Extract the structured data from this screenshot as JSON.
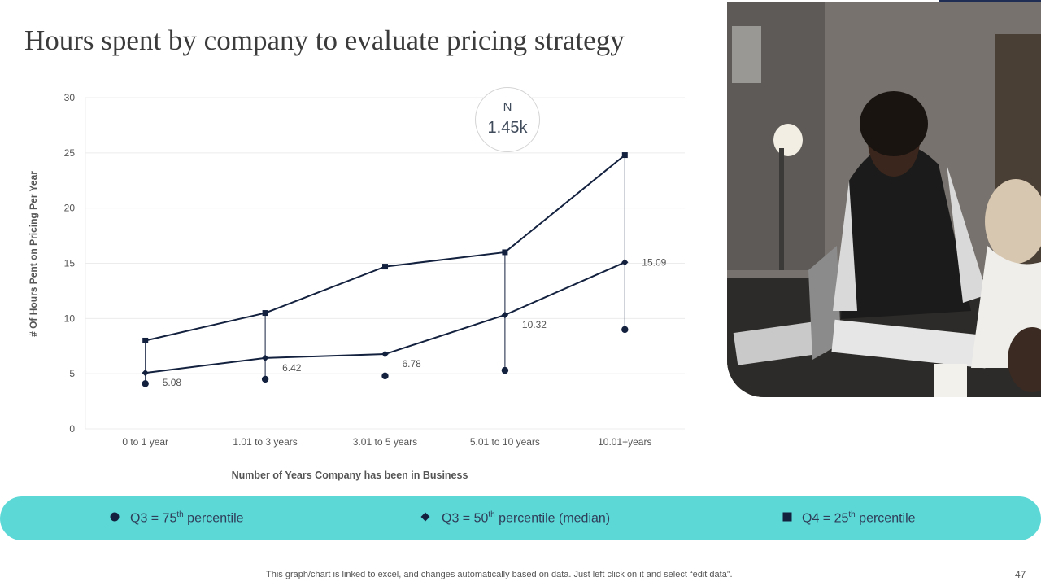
{
  "slide": {
    "title": "Hours spent by company to evaluate pricing strategy",
    "footer_note": "This graph/chart is linked to excel,  and changes automatically based on data. Just left click on it and select “edit data”.",
    "page_number": "47"
  },
  "badge": {
    "label": "N",
    "value": "1.45k"
  },
  "legend": {
    "items": [
      {
        "pre": "Q3 = 75",
        "sup": "th",
        "post": " percentile",
        "marker": "circle"
      },
      {
        "pre": "Q3 = 50",
        "sup": "th",
        "post": " percentile (median)",
        "marker": "diamond"
      },
      {
        "pre": "Q4 = 25",
        "sup": "th",
        "post": " percentile",
        "marker": "square"
      }
    ],
    "bar_color": "#5cd8d7"
  },
  "colors": {
    "series": "#13213f",
    "text": "#3f4a5a",
    "grid": "#ececec"
  },
  "chart_data": {
    "type": "line",
    "title": "",
    "xlabel": "Number of Years Company has been in Business",
    "ylabel": "# Of Hours Pent on Pricing Per Year",
    "categories": [
      "0 to 1 year",
      "1.01 to 3 years",
      "3.01 to 5 years",
      "5.01 to 10 years",
      "10.01+years"
    ],
    "ylim": [
      0,
      30
    ],
    "yticks": [
      0,
      5,
      10,
      15,
      20,
      25,
      30
    ],
    "grid": true,
    "series": [
      {
        "name": "Q3 = 75th percentile",
        "marker": "circle",
        "values": [
          4.1,
          4.5,
          4.8,
          5.3,
          9.0
        ]
      },
      {
        "name": "Q3 = 50th percentile (median)",
        "marker": "diamond",
        "values": [
          5.08,
          6.42,
          6.78,
          10.32,
          15.09
        ],
        "data_labels": [
          "5.08",
          "6.42",
          "6.78",
          "10.32",
          "15.09"
        ]
      },
      {
        "name": "Q4 = 25th percentile",
        "marker": "square",
        "values": [
          8.0,
          10.5,
          14.7,
          16.0,
          24.8
        ]
      }
    ]
  }
}
